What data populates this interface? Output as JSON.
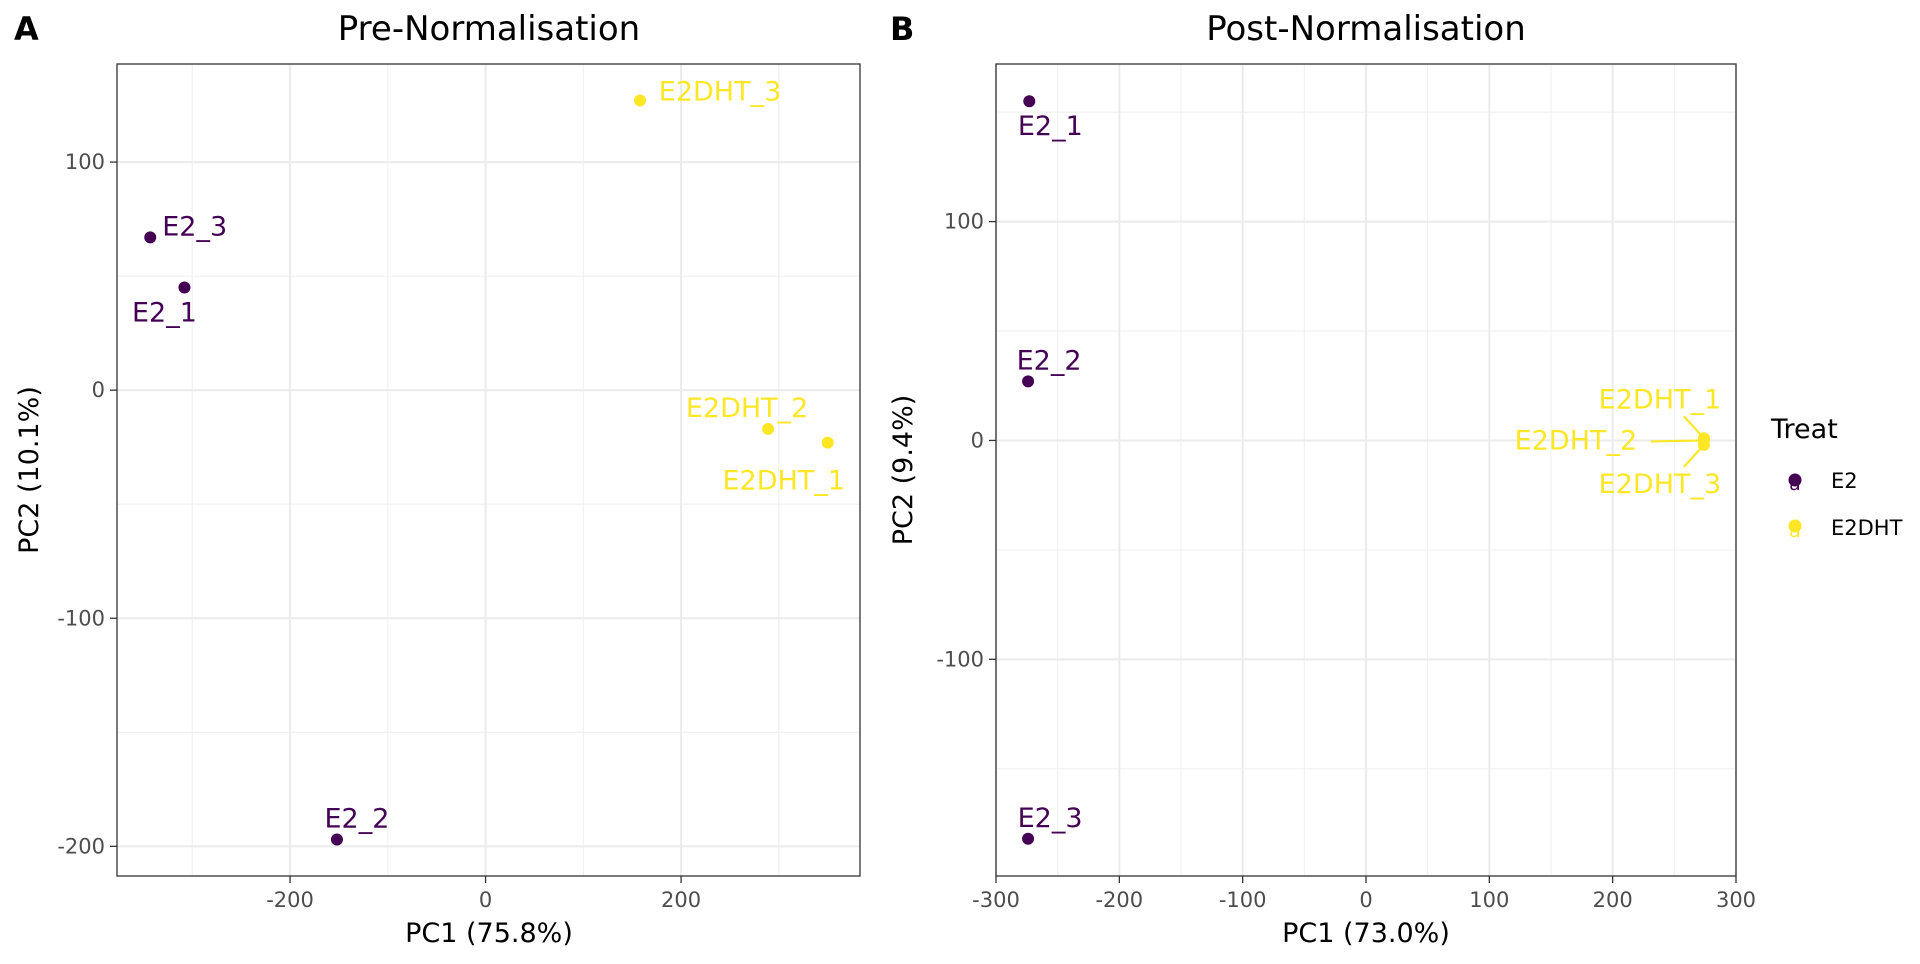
{
  "chart_data": [
    {
      "type": "scatter",
      "tag": "A",
      "title": "Pre-Normalisation",
      "xlabel": "PC1 (75.8%)",
      "ylabel": "PC2 (10.1%)",
      "xlim": [
        -377,
        383
      ],
      "ylim": [
        -213,
        143
      ],
      "xticks": [
        -200,
        0,
        200
      ],
      "xtick_labels": [
        "-200",
        "0",
        "200"
      ],
      "yticks": [
        -200,
        -100,
        0,
        100
      ],
      "ytick_labels": [
        "-200",
        "-100",
        "0",
        "100"
      ],
      "grid": true,
      "points": [
        {
          "label": "E2_3",
          "group": "E2",
          "x": -343,
          "y": 67
        },
        {
          "label": "E2_1",
          "group": "E2",
          "x": -308,
          "y": 45
        },
        {
          "label": "E2_2",
          "group": "E2",
          "x": -152,
          "y": -197
        },
        {
          "label": "E2DHT_3",
          "group": "E2DHT",
          "x": 158,
          "y": 127
        },
        {
          "label": "E2DHT_2",
          "group": "E2DHT",
          "x": 289,
          "y": -17
        },
        {
          "label": "E2DHT_1",
          "group": "E2DHT",
          "x": 350,
          "y": -23
        }
      ]
    },
    {
      "type": "scatter",
      "tag": "B",
      "title": "Post-Normalisation",
      "xlabel": "PC1 (73.0%)",
      "ylabel": "PC2 (9.4%)",
      "xlim": [
        -300,
        300
      ],
      "ylim": [
        -199,
        172
      ],
      "xticks": [
        -300,
        -200,
        -100,
        0,
        100,
        200,
        300
      ],
      "xtick_labels": [
        "-300",
        "-200",
        "-100",
        "0",
        "100",
        "200",
        "300"
      ],
      "yticks": [
        -100,
        0,
        100
      ],
      "ytick_labels": [
        "-100",
        "0",
        "100"
      ],
      "grid": true,
      "points": [
        {
          "label": "E2_1",
          "group": "E2",
          "x": -273,
          "y": 155
        },
        {
          "label": "E2_2",
          "group": "E2",
          "x": -274,
          "y": 27
        },
        {
          "label": "E2_3",
          "group": "E2",
          "x": -274,
          "y": -182
        },
        {
          "label": "E2DHT_1",
          "group": "E2DHT",
          "x": 274,
          "y": 1
        },
        {
          "label": "E2DHT_2",
          "group": "E2DHT",
          "x": 274,
          "y": 0
        },
        {
          "label": "E2DHT_3",
          "group": "E2DHT",
          "x": 274,
          "y": -2
        }
      ]
    }
  ],
  "legend": {
    "title": "Treat",
    "placement": "right",
    "items": [
      {
        "name": "E2",
        "color": "#440154"
      },
      {
        "name": "E2DHT",
        "color": "#FDE725"
      }
    ]
  },
  "colors": {
    "E2": "#440154",
    "E2DHT": "#FDE725"
  }
}
